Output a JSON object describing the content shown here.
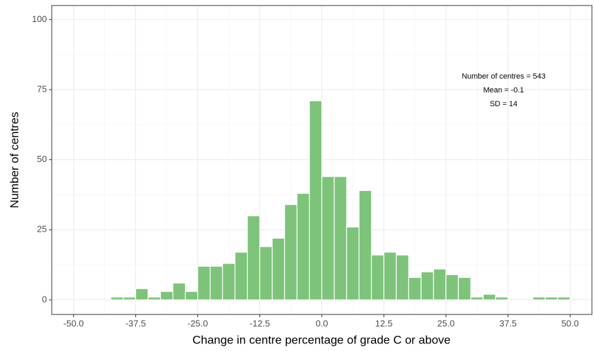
{
  "chart_data": {
    "type": "histogram",
    "x_label": "Change in centre percentage of grade C or above",
    "y_label": "Number of centres",
    "bins": [
      -42.5,
      -40,
      -37.5,
      -35,
      -32.5,
      -30,
      -27.5,
      -25,
      -22.5,
      -20,
      -17.5,
      -15,
      -12.5,
      -10,
      -7.5,
      -5,
      -2.5,
      0,
      2.5,
      5,
      7.5,
      10,
      12.5,
      15,
      17.5,
      20,
      22.5,
      25,
      27.5,
      30,
      32.5,
      35,
      37.5,
      40,
      42.5,
      45,
      47.5,
      50
    ],
    "values": [
      1,
      1,
      4,
      1,
      3,
      6,
      3,
      12,
      12,
      13,
      17,
      30,
      19,
      22,
      34,
      38,
      71,
      44,
      44,
      26,
      39,
      16,
      17,
      16,
      8,
      10,
      11,
      9,
      8,
      1,
      2,
      1,
      0,
      0,
      1,
      1,
      1
    ],
    "color": "#7dc47a",
    "xlim": [
      -54.4,
      54.4
    ],
    "ylim": [
      -5.2,
      105
    ],
    "xticks": [
      {
        "value": -50,
        "label": "-50.0"
      },
      -37.5,
      {
        "value": -25,
        "label": "-25.0"
      },
      -12.5,
      {
        "value": 0,
        "label": "0.0"
      },
      12.5,
      {
        "value": 25,
        "label": "25.0"
      },
      37.5,
      {
        "value": 50,
        "label": "50.0"
      }
    ],
    "yticks": [
      0,
      25,
      50,
      75,
      100
    ],
    "grid": true,
    "annotations": [
      "Number of centres = 543",
      "Mean = -0.1",
      "SD = 14"
    ]
  }
}
